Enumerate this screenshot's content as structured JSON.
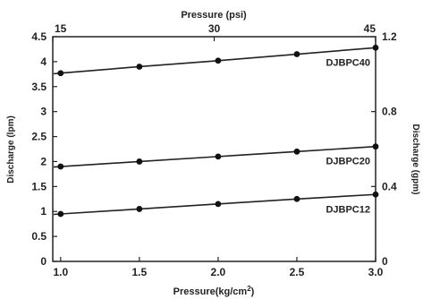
{
  "chart_data": {
    "type": "line",
    "title": "",
    "xlabel": "Pressure(kg/cm",
    "xlabel_superscript": "2",
    "xlabel_close": ")",
    "x2label": "Pressure (psi)",
    "ylabel": "Discharge (lpm)",
    "y2label": "Discharge (gpm)",
    "xlim": [
      0.95,
      3.0
    ],
    "ylim": [
      0,
      4.5
    ],
    "y2lim": [
      0,
      1.2
    ],
    "x2lim": [
      15,
      45
    ],
    "x_ticks": [
      1.0,
      1.5,
      2.0,
      2.5,
      3.0
    ],
    "x_tick_labels": [
      "1.0",
      "1.5",
      "2.0",
      "2.5",
      "3.0"
    ],
    "y_ticks": [
      0,
      0.5,
      1,
      1.5,
      2,
      2.5,
      3,
      3.5,
      4,
      4.5
    ],
    "y_tick_labels": [
      "0",
      "0.5",
      "1",
      "1.5",
      "2",
      "2.5",
      "3",
      "3.5",
      "4",
      "4.5"
    ],
    "y2_ticks": [
      0,
      0.4,
      0.8,
      1.2
    ],
    "y2_tick_labels": [
      "0",
      "0.4",
      "0.8",
      "1.2"
    ],
    "x2_ticks": [
      15,
      30,
      45
    ],
    "x2_tick_labels": [
      "15",
      "30",
      "45"
    ],
    "grid": false,
    "x": [
      1.0,
      1.5,
      2.0,
      2.5,
      3.0
    ],
    "series": [
      {
        "name": "DJBPC40",
        "values": [
          3.77,
          3.9,
          4.02,
          4.15,
          4.28
        ]
      },
      {
        "name": "DJBPC20",
        "values": [
          1.9,
          2.0,
          2.1,
          2.2,
          2.3
        ]
      },
      {
        "name": "DJBPC12",
        "values": [
          0.95,
          1.05,
          1.15,
          1.25,
          1.34
        ]
      }
    ]
  }
}
